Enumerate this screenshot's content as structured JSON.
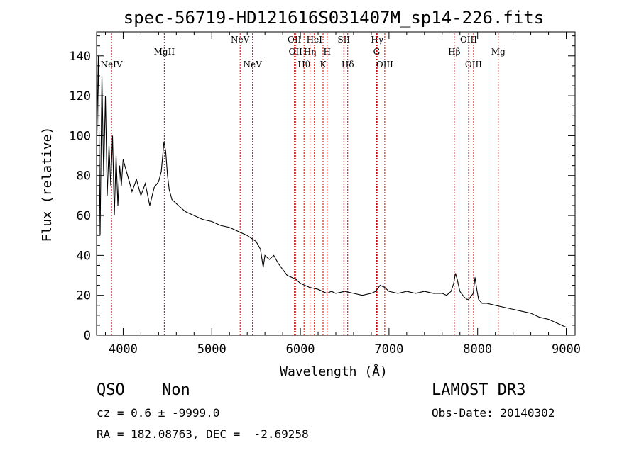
{
  "chart_data": {
    "type": "line",
    "title": "spec-56719-HD121616S031407M_sp14-226.fits",
    "xlabel": "Wavelength (Å)",
    "ylabel": "Flux (relative)",
    "xlim": [
      3700,
      9100
    ],
    "ylim": [
      0,
      152
    ],
    "x_ticks": [
      4000,
      5000,
      6000,
      7000,
      8000,
      9000
    ],
    "y_ticks": [
      0,
      20,
      40,
      60,
      80,
      100,
      120,
      140
    ],
    "spectrum": {
      "x": [
        3700,
        3720,
        3740,
        3760,
        3780,
        3800,
        3820,
        3840,
        3860,
        3880,
        3900,
        3920,
        3940,
        3960,
        3980,
        4000,
        4050,
        4100,
        4150,
        4200,
        4250,
        4300,
        4350,
        4400,
        4430,
        4460,
        4480,
        4500,
        4520,
        4550,
        4600,
        4700,
        4800,
        4900,
        5000,
        5100,
        5200,
        5300,
        5400,
        5500,
        5550,
        5580,
        5600,
        5650,
        5700,
        5750,
        5800,
        5850,
        5900,
        5950,
        6000,
        6100,
        6200,
        6250,
        6300,
        6350,
        6400,
        6500,
        6600,
        6700,
        6800,
        6850,
        6900,
        6950,
        7000,
        7100,
        7200,
        7300,
        7400,
        7500,
        7600,
        7650,
        7700,
        7730,
        7750,
        7770,
        7800,
        7850,
        7880,
        7900,
        7950,
        7970,
        7990,
        8010,
        8050,
        8100,
        8200,
        8300,
        8400,
        8500,
        8600,
        8700,
        8800,
        8900,
        9000
      ],
      "y": [
        90,
        140,
        50,
        130,
        80,
        120,
        70,
        95,
        75,
        100,
        60,
        90,
        65,
        85,
        75,
        88,
        80,
        72,
        78,
        70,
        76,
        65,
        74,
        77,
        82,
        97,
        92,
        80,
        73,
        68,
        66,
        62,
        60,
        58,
        57,
        55,
        54,
        52,
        50,
        47,
        43,
        34,
        40,
        38,
        40,
        36,
        33,
        30,
        29,
        28,
        26,
        24,
        23,
        22,
        21,
        22,
        21,
        22,
        21,
        20,
        21,
        22,
        25,
        24,
        22,
        21,
        22,
        21,
        22,
        21,
        21,
        20,
        22,
        26,
        31,
        28,
        22,
        19,
        18,
        18,
        21,
        29,
        23,
        18,
        16,
        16,
        15,
        14,
        13,
        12,
        11,
        9,
        8,
        6,
        4
      ]
    },
    "lines": [
      {
        "label": "NeIV",
        "x": 3869,
        "row": 3
      },
      {
        "label": "MgII",
        "x": 4464,
        "row": 2
      },
      {
        "label": "NeV",
        "x": 5320,
        "row": 1
      },
      {
        "label": "NeV",
        "x": 5460,
        "row": 3
      },
      {
        "label": "OII",
        "x": 5933,
        "row": 1
      },
      {
        "label": "OII",
        "x": 5945,
        "row": 2
      },
      {
        "label": "Hθ",
        "x": 6041,
        "row": 3
      },
      {
        "label": "Hη",
        "x": 6108,
        "row": 2
      },
      {
        "label": "HeI",
        "x": 6158,
        "row": 1
      },
      {
        "label": "H",
        "x": 6302,
        "row": 2
      },
      {
        "label": "K",
        "x": 6256,
        "row": 3
      },
      {
        "label": "SII",
        "x": 6490,
        "row": 1
      },
      {
        "label": "Hδ",
        "x": 6534,
        "row": 3
      },
      {
        "label": "Hγ",
        "x": 6866,
        "row": 1
      },
      {
        "label": "G",
        "x": 6860,
        "row": 2
      },
      {
        "label": "OIII",
        "x": 6952,
        "row": 3
      },
      {
        "label": "Hβ",
        "x": 7737,
        "row": 2
      },
      {
        "label": "OIII",
        "x": 7898,
        "row": 1
      },
      {
        "label": "OIII",
        "x": 7954,
        "row": 3
      },
      {
        "label": "Mg",
        "x": 8233,
        "row": 2
      }
    ],
    "colors": {
      "spectrum": "#000000",
      "lines": "#cc0000",
      "axes": "#000000"
    }
  },
  "info": {
    "class": "QSO",
    "subclass": "Non",
    "survey": "LAMOST DR3",
    "cz": "cz = 0.6 ± -9999.0",
    "obs_date": "Obs-Date: 20140302",
    "coords": "RA = 182.08763, DEC =  -2.69258"
  }
}
